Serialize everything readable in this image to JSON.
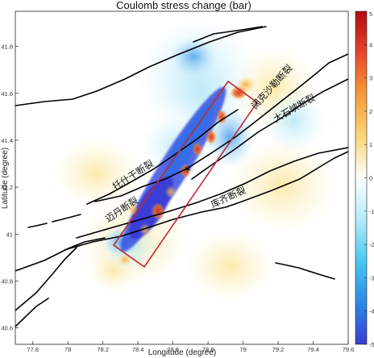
{
  "figure": {
    "title": "Coulomb stress change (bar)",
    "xlabel": "Longitude (degree)",
    "ylabel": "Latitude  (degree)"
  },
  "map": {
    "x_ticks": [
      "77.8",
      "78",
      "78.2",
      "78.4",
      "78.6",
      "78.8",
      "79",
      "79.2",
      "79.4",
      "79.6"
    ],
    "y_ticks": [
      "41.8",
      "41.6",
      "41.4",
      "41.2",
      "41",
      "40.8",
      "40.6"
    ],
    "xlim": [
      77.7,
      79.6
    ],
    "ylim": [
      40.53,
      41.95
    ],
    "epicenter": {
      "lon": 78.65,
      "lat": 41.27,
      "symbol": "star"
    },
    "rupture_box_color": "#c0282e",
    "fault_labels": [
      {
        "key": "tuoshigan",
        "text": "托什干断裂"
      },
      {
        "key": "kepingtage",
        "text": "阔克沙勒断裂"
      },
      {
        "key": "dashijun",
        "text": "大石峡断裂"
      },
      {
        "key": "maidan",
        "text": "迈丹断裂"
      },
      {
        "key": "kuqi",
        "text": "库齐断裂"
      }
    ]
  },
  "colorbar": {
    "ticks": [
      "5",
      "4",
      "3",
      "2",
      "1",
      "0",
      "-1",
      "-2",
      "-3",
      "-4",
      "-5"
    ],
    "range": [
      -5,
      5
    ],
    "unit": "bar",
    "colors": {
      "max": "#b50d12",
      "positive": "#f79b3a",
      "zero": "#ffffff",
      "negative": "#49c8f0",
      "min": "#3a3bd6"
    }
  }
}
